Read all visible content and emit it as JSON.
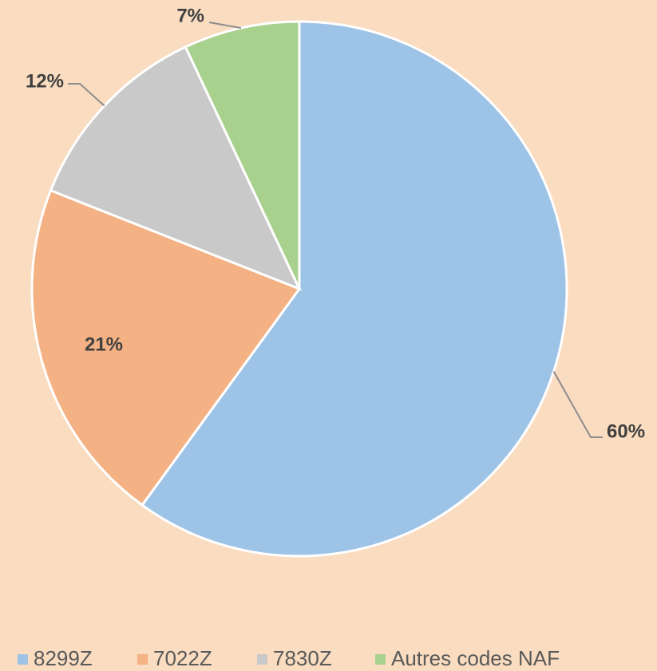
{
  "chart_data": {
    "type": "pie",
    "categories": [
      "8299Z",
      "7022Z",
      "7830Z",
      "Autres codes NAF"
    ],
    "values": [
      60,
      21,
      12,
      7
    ],
    "value_labels": [
      "60%",
      "21%",
      "12%",
      "7%"
    ],
    "colors": [
      "#9dc3e6",
      "#f4b183",
      "#c9c9c9",
      "#a9d18e"
    ],
    "legend": "bottom"
  }
}
